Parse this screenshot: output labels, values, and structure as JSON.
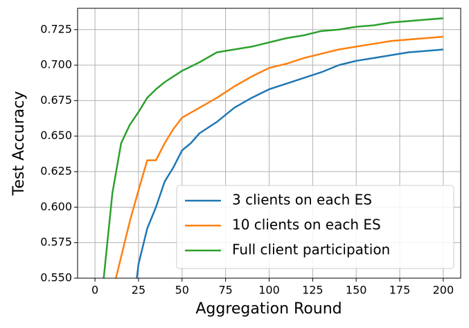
{
  "chart_data": {
    "type": "line",
    "xlabel": "Aggregation Round",
    "ylabel": "Test Accuracy",
    "xlim": [
      -10,
      210
    ],
    "xticks": [
      0,
      25,
      50,
      75,
      100,
      125,
      150,
      175,
      200
    ],
    "ylim": [
      0.55,
      0.74
    ],
    "yticks": [
      {
        "value": 0.55,
        "label": "0.550"
      },
      0.575,
      {
        "value": 0.6,
        "label": "0.600"
      },
      0.625,
      {
        "value": 0.65,
        "label": "0.650"
      },
      0.675,
      {
        "value": 0.7,
        "label": "0.700"
      },
      0.725
    ],
    "grid": true,
    "legend": "lower right",
    "series": [
      {
        "name": "3 clients on each ES",
        "color": "#1f77b4",
        "x": [
          24,
          25,
          30,
          35,
          40,
          45,
          50,
          55,
          60,
          70,
          80,
          90,
          100,
          110,
          120,
          130,
          140,
          150,
          160,
          170,
          180,
          190,
          200
        ],
        "values": [
          0.55,
          0.56,
          0.585,
          0.6,
          0.618,
          0.628,
          0.64,
          0.645,
          0.652,
          0.66,
          0.67,
          0.677,
          0.683,
          0.687,
          0.691,
          0.695,
          0.7,
          0.703,
          0.705,
          0.707,
          0.709,
          0.71,
          0.711
        ]
      },
      {
        "name": "10 clients on each ES",
        "color": "#ff7f0e",
        "x": [
          12,
          15,
          20,
          25,
          30,
          35,
          40,
          45,
          50,
          60,
          70,
          80,
          90,
          100,
          110,
          120,
          130,
          140,
          150,
          160,
          170,
          180,
          190,
          200
        ],
        "values": [
          0.55,
          0.565,
          0.59,
          0.612,
          0.633,
          0.633,
          0.645,
          0.655,
          0.663,
          0.67,
          0.677,
          0.685,
          0.692,
          0.698,
          0.701,
          0.705,
          0.708,
          0.711,
          0.713,
          0.715,
          0.717,
          0.718,
          0.719,
          0.72
        ]
      },
      {
        "name": "Full client participation",
        "color": "#2ca02c",
        "x": [
          5,
          10,
          15,
          20,
          25,
          30,
          35,
          40,
          50,
          60,
          70,
          80,
          90,
          100,
          110,
          120,
          130,
          140,
          150,
          160,
          170,
          180,
          190,
          200
        ],
        "values": [
          0.55,
          0.61,
          0.645,
          0.658,
          0.667,
          0.677,
          0.683,
          0.688,
          0.696,
          0.702,
          0.709,
          0.711,
          0.713,
          0.716,
          0.719,
          0.721,
          0.724,
          0.725,
          0.727,
          0.728,
          0.73,
          0.731,
          0.732,
          0.733
        ]
      }
    ]
  }
}
